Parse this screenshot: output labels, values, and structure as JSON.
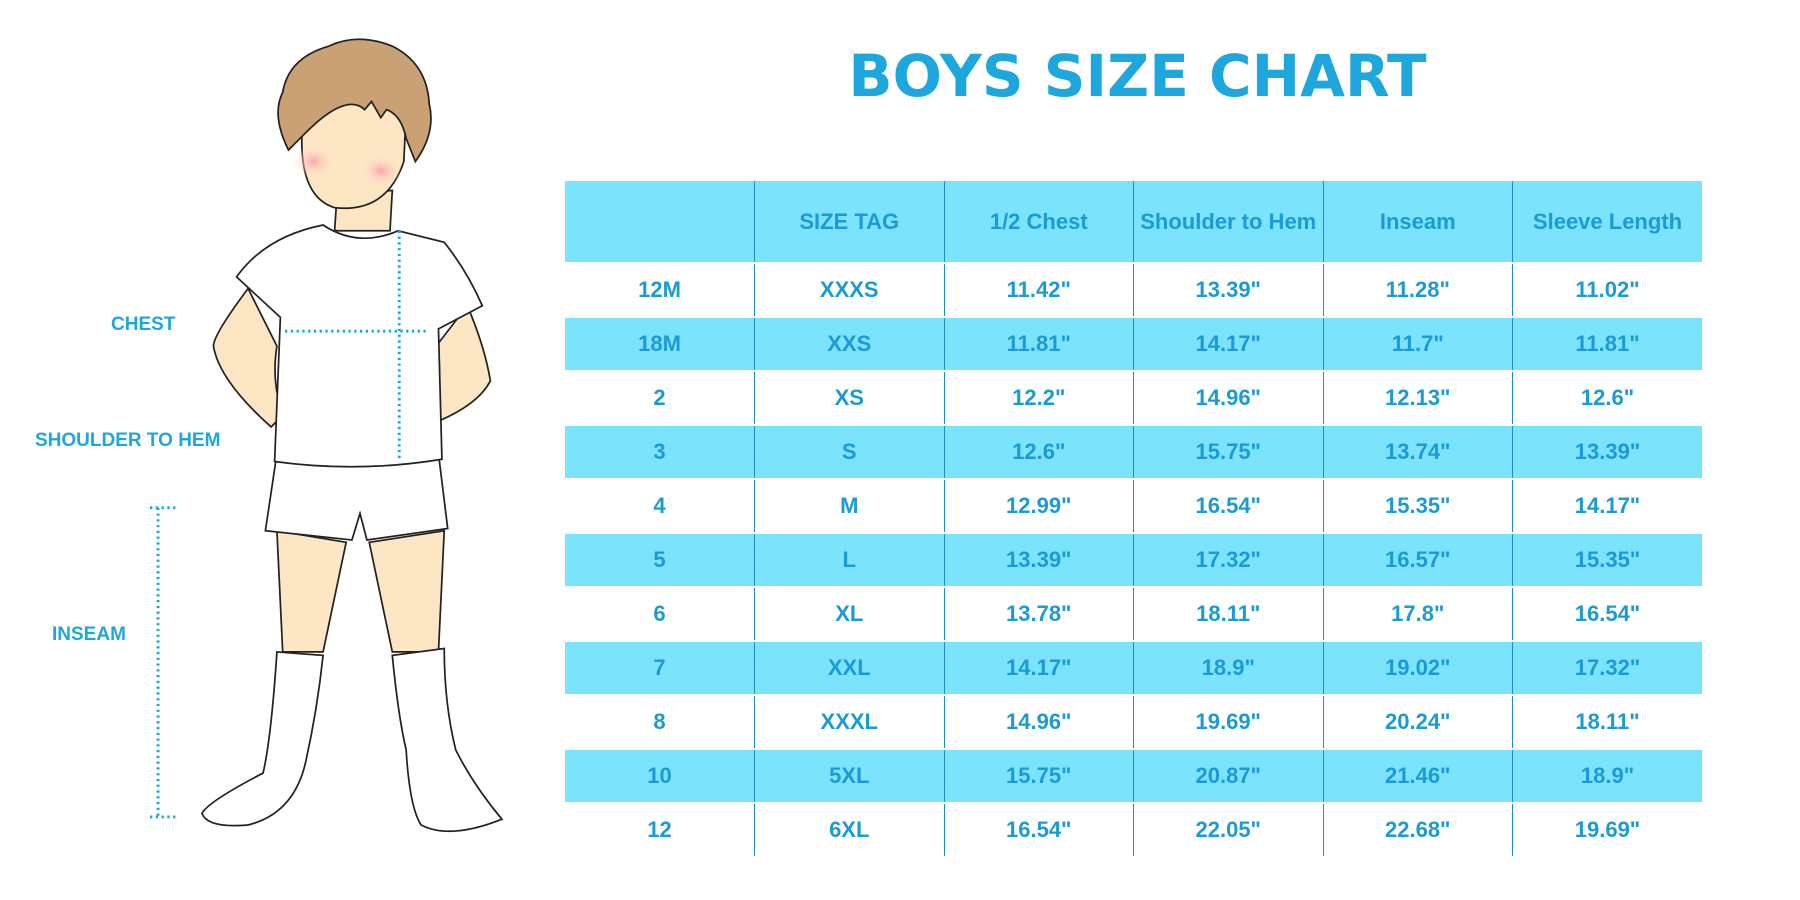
{
  "title": "BOYS SIZE CHART",
  "measure_labels": {
    "chest": "CHEST",
    "shoulder_to_hem": "SHOULDER TO HEM",
    "inseam": "INSEAM"
  },
  "colors": {
    "accent_text": "#1ea7dc",
    "row_stripe": "#7be3fc",
    "divider": "#1f8fc6"
  },
  "table": {
    "headers": [
      "",
      "SIZE TAG",
      "1/2 Chest",
      "Shoulder to Hem",
      "Inseam",
      "Sleeve Length"
    ],
    "rows": [
      [
        "12M",
        "XXXS",
        "11.42\"",
        "13.39\"",
        "11.28\"",
        "11.02\""
      ],
      [
        "18M",
        "XXS",
        "11.81\"",
        "14.17\"",
        "11.7\"",
        "11.81\""
      ],
      [
        "2",
        "XS",
        "12.2\"",
        "14.96\"",
        "12.13\"",
        "12.6\""
      ],
      [
        "3",
        "S",
        "12.6\"",
        "15.75\"",
        "13.74\"",
        "13.39\""
      ],
      [
        "4",
        "M",
        "12.99\"",
        "16.54\"",
        "15.35\"",
        "14.17\""
      ],
      [
        "5",
        "L",
        "13.39\"",
        "17.32\"",
        "16.57\"",
        "15.35\""
      ],
      [
        "6",
        "XL",
        "13.78\"",
        "18.11\"",
        "17.8\"",
        "16.54\""
      ],
      [
        "7",
        "XXL",
        "14.17\"",
        "18.9\"",
        "19.02\"",
        "17.32\""
      ],
      [
        "8",
        "XXXL",
        "14.96\"",
        "19.69\"",
        "20.24\"",
        "18.11\""
      ],
      [
        "10",
        "5XL",
        "15.75\"",
        "20.87\"",
        "21.46\"",
        "18.9\""
      ],
      [
        "12",
        "6XL",
        "16.54\"",
        "22.05\"",
        "22.68\"",
        "19.69\""
      ]
    ]
  }
}
